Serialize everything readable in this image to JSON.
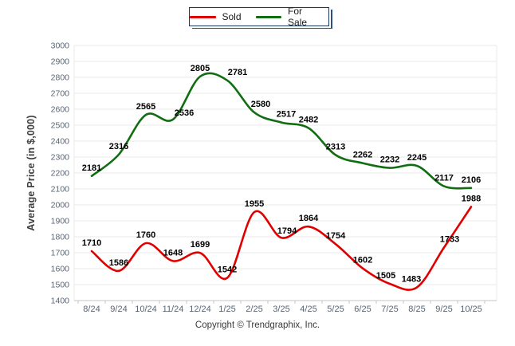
{
  "legend": {
    "sold_label": "Sold",
    "for_sale_label": "For Sale"
  },
  "footer": {
    "copyright": "Copyright © Trendgraphix, Inc."
  },
  "colors": {
    "sold_line": "#E00000",
    "for_sale_line": "#116D11",
    "grid": "#E9E9E9",
    "axis": "#C6C6C6",
    "tick_label": "#5A6470",
    "data_label": "#000000",
    "legend_border": "#17375E"
  },
  "chart_data": {
    "type": "line",
    "title": "",
    "xlabel": "",
    "ylabel": "Average Price (in $,000)",
    "x": [
      "8/24",
      "9/24",
      "10/24",
      "11/24",
      "12/24",
      "1/25",
      "2/25",
      "3/25",
      "4/25",
      "5/25",
      "6/25",
      "7/25",
      "8/25",
      "9/25",
      "10/25"
    ],
    "series": [
      {
        "name": "Sold",
        "color": "#E00000",
        "values": [
          1710,
          1586,
          1760,
          1648,
          1699,
          1542,
          1955,
          1794,
          1864,
          1754,
          1602,
          1505,
          1483,
          1733,
          1988
        ]
      },
      {
        "name": "For Sale",
        "color": "#116D11",
        "values": [
          2181,
          2316,
          2565,
          2536,
          2805,
          2781,
          2580,
          2517,
          2482,
          2313,
          2262,
          2232,
          2245,
          2117,
          2106
        ]
      }
    ],
    "ylim": [
      1400,
      3000
    ],
    "ytick_step": 100,
    "grid": true,
    "smooth": true,
    "data_labels": true,
    "legend_position": "top-center"
  }
}
